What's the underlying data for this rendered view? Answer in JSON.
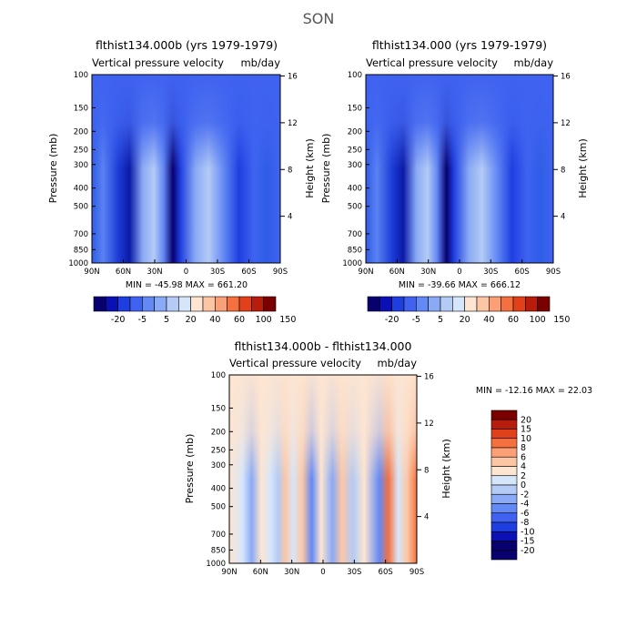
{
  "figure": {
    "season": "SON"
  },
  "colors": {
    "diff_scale": [
      "#08006e",
      "#0a10b3",
      "#1e3ee0",
      "#3f63f0",
      "#6389f5",
      "#8aaaf5",
      "#b3cbf5",
      "#d6e6fa",
      "#fde5d1",
      "#fcc6a5",
      "#fb9f77",
      "#f4713f",
      "#e0401a",
      "#b81c0c",
      "#7a0000"
    ],
    "field_scale": [
      "#08006e",
      "#0a10b3",
      "#1e3ee0",
      "#3f63f0",
      "#6389f5",
      "#8aaaf5",
      "#b3cbf5",
      "#d6e6fa",
      "#fde5d1",
      "#fcc6a5",
      "#fb9f77",
      "#f4713f",
      "#e0401a",
      "#b81c0c",
      "#7a0000"
    ]
  },
  "chart_data": [
    {
      "type": "heatmap",
      "title": "flthist134.000b (yrs 1979-1979)",
      "subtitle_left": "Vertical pressure velocity",
      "subtitle_right": "mb/day",
      "xlabel": "",
      "ylabel": "Pressure (mb)",
      "y2label": "Height (km)",
      "x_ticks": [
        "90N",
        "60N",
        "30N",
        "0",
        "30S",
        "60S",
        "90S"
      ],
      "y_ticks": [
        "100",
        "150",
        "200",
        "250",
        "300",
        "400",
        "500",
        "700",
        "850",
        "1000"
      ],
      "y2_ticks": [
        "16",
        "12",
        "8",
        "4"
      ],
      "min_label": "MIN = -45.98   MAX = 661.20",
      "colorbar_labels": [
        "-20",
        "-5",
        "5",
        "20",
        "40",
        "60",
        "100",
        "150"
      ]
    },
    {
      "type": "heatmap",
      "title": "flthist134.000 (yrs 1979-1979)",
      "subtitle_left": "Vertical pressure velocity",
      "subtitle_right": "mb/day",
      "xlabel": "",
      "ylabel": "Pressure (mb)",
      "y2label": "Height (km)",
      "x_ticks": [
        "90N",
        "60N",
        "30N",
        "0",
        "30S",
        "60S",
        "90S"
      ],
      "y_ticks": [
        "100",
        "150",
        "200",
        "250",
        "300",
        "400",
        "500",
        "700",
        "850",
        "1000"
      ],
      "y2_ticks": [
        "16",
        "12",
        "8",
        "4"
      ],
      "min_label": "MIN = -39.66   MAX = 666.12",
      "colorbar_labels": [
        "-20",
        "-5",
        "5",
        "20",
        "40",
        "60",
        "100",
        "150"
      ]
    },
    {
      "type": "heatmap",
      "title": "flthist134.000b - flthist134.000",
      "subtitle_left": "Vertical pressure velocity",
      "subtitle_right": "mb/day",
      "xlabel": "",
      "ylabel": "Pressure (mb)",
      "y2label": "Height (km)",
      "x_ticks": [
        "90N",
        "60N",
        "30N",
        "0",
        "30S",
        "60S",
        "90S"
      ],
      "y_ticks": [
        "100",
        "150",
        "200",
        "250",
        "300",
        "400",
        "500",
        "700",
        "850",
        "1000"
      ],
      "y2_ticks": [
        "16",
        "12",
        "8",
        "4"
      ],
      "min_label": "MIN = -12.16   MAX =  22.03",
      "colorbar_labels": [
        "20",
        "15",
        "10",
        "8",
        "6",
        "4",
        "2",
        "0",
        "-2",
        "-4",
        "-6",
        "-8",
        "-10",
        "-15",
        "-20"
      ]
    }
  ]
}
